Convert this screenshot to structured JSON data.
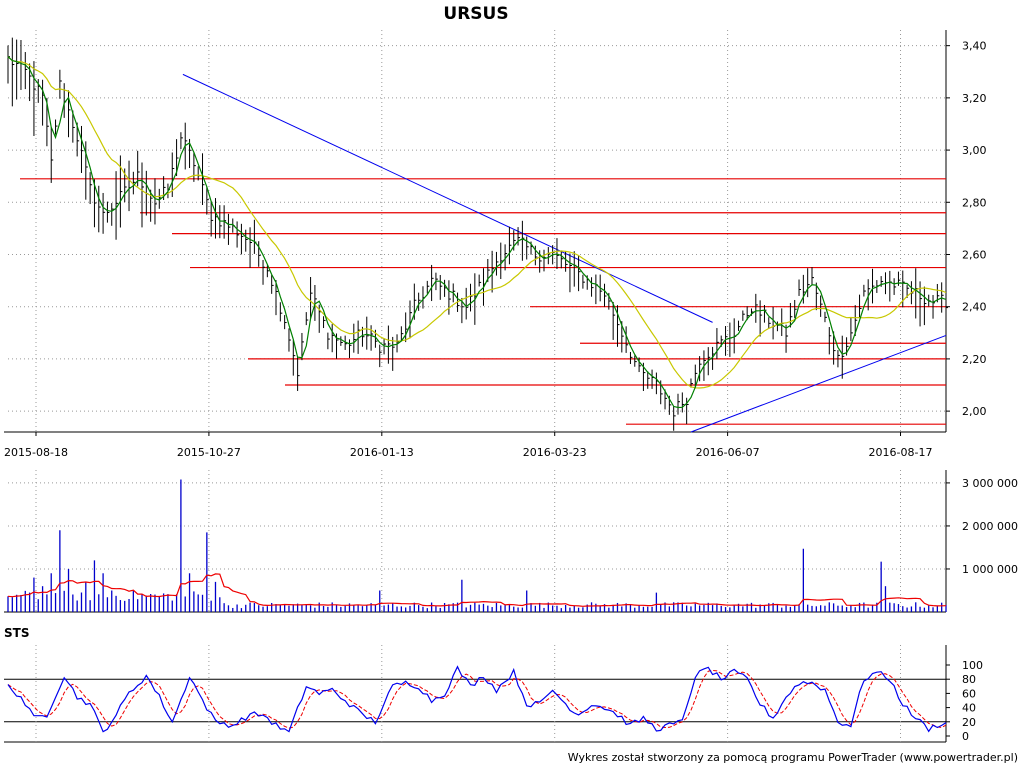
{
  "title": "URSUS",
  "credit": "Wykres został stworzony za pomocą programu PowerTrader (www.powertrader.pl)",
  "indicator_label": "STS",
  "colors": {
    "candle": "#000000",
    "ma_short": "#008000",
    "ma_long": "#c8c800",
    "support": "#e60000",
    "trend": "#0000ee",
    "volume": "#0000cc",
    "volume_ma": "#ee0000",
    "sts_k": "#0000ee",
    "sts_d": "#ee0000"
  },
  "chart_data": [
    {
      "type": "line",
      "name": "price",
      "x_tick_labels": [
        "2015-08-18",
        "2015-10-27",
        "2016-01-13",
        "2016-03-23",
        "2016-06-07",
        "2016-08-17"
      ],
      "y_tick_labels": [
        "3,40",
        "3,20",
        "3,00",
        "2,80",
        "2,60",
        "2,40",
        "2,20",
        "2,00"
      ],
      "ylim": [
        1.92,
        3.46
      ],
      "close_key_points": [
        [
          0,
          3.35
        ],
        [
          4,
          3.3
        ],
        [
          8,
          3.2
        ],
        [
          10,
          2.95
        ],
        [
          12,
          3.25
        ],
        [
          16,
          3.05
        ],
        [
          19,
          2.85
        ],
        [
          22,
          2.75
        ],
        [
          26,
          2.82
        ],
        [
          30,
          2.9
        ],
        [
          34,
          2.8
        ],
        [
          37,
          2.85
        ],
        [
          40,
          3.05
        ],
        [
          43,
          2.95
        ],
        [
          47,
          2.75
        ],
        [
          52,
          2.7
        ],
        [
          56,
          2.65
        ],
        [
          60,
          2.55
        ],
        [
          64,
          2.35
        ],
        [
          67,
          2.15
        ],
        [
          70,
          2.45
        ],
        [
          74,
          2.3
        ],
        [
          78,
          2.25
        ],
        [
          82,
          2.3
        ],
        [
          86,
          2.25
        ],
        [
          90,
          2.25
        ],
        [
          94,
          2.4
        ],
        [
          98,
          2.5
        ],
        [
          102,
          2.45
        ],
        [
          106,
          2.4
        ],
        [
          110,
          2.5
        ],
        [
          114,
          2.6
        ],
        [
          118,
          2.65
        ],
        [
          122,
          2.6
        ],
        [
          126,
          2.6
        ],
        [
          130,
          2.55
        ],
        [
          134,
          2.5
        ],
        [
          138,
          2.45
        ],
        [
          142,
          2.3
        ],
        [
          146,
          2.15
        ],
        [
          150,
          2.1
        ],
        [
          154,
          2.0
        ],
        [
          157,
          2.05
        ],
        [
          160,
          2.2
        ],
        [
          164,
          2.25
        ],
        [
          168,
          2.3
        ],
        [
          172,
          2.4
        ],
        [
          176,
          2.35
        ],
        [
          180,
          2.3
        ],
        [
          183,
          2.45
        ],
        [
          186,
          2.5
        ],
        [
          189,
          2.35
        ],
        [
          192,
          2.2
        ],
        [
          195,
          2.3
        ],
        [
          198,
          2.45
        ],
        [
          202,
          2.5
        ],
        [
          206,
          2.48
        ],
        [
          210,
          2.45
        ],
        [
          214,
          2.42
        ]
      ],
      "support_levels": [
        2.89,
        2.76,
        2.68,
        2.55,
        2.4,
        2.26,
        2.2,
        2.1,
        1.95
      ],
      "trend_lines": [
        {
          "from": [
            "2015-10-27",
            3.29
          ],
          "to": [
            163,
            2.34
          ]
        },
        {
          "from": [
            158,
            1.92
          ],
          "to": [
            217,
            2.29
          ]
        }
      ]
    },
    {
      "type": "bar",
      "name": "volume",
      "y_tick_labels": [
        "3 000 000",
        "2 000 000",
        "1 000 000"
      ],
      "ylim": [
        0,
        3300000
      ],
      "spikes": [
        [
          2,
          400000
        ],
        [
          6,
          800000
        ],
        [
          8,
          600000
        ],
        [
          10,
          900000
        ],
        [
          12,
          1900000
        ],
        [
          14,
          1000000
        ],
        [
          18,
          700000
        ],
        [
          20,
          1200000
        ],
        [
          22,
          900000
        ],
        [
          24,
          500000
        ],
        [
          40,
          3080000
        ],
        [
          42,
          900000
        ],
        [
          45,
          400000
        ],
        [
          46,
          1850000
        ],
        [
          48,
          700000
        ],
        [
          86,
          500000
        ],
        [
          105,
          750000
        ],
        [
          120,
          500000
        ],
        [
          150,
          450000
        ],
        [
          184,
          1470000
        ],
        [
          202,
          1170000
        ],
        [
          203,
          600000
        ]
      ]
    },
    {
      "type": "line",
      "name": "STS",
      "y_tick_labels": [
        "100",
        "80",
        "60",
        "40",
        "20",
        "0"
      ],
      "ylim": [
        0,
        100
      ],
      "reference_lines": [
        20,
        80
      ],
      "k_key_points": [
        [
          0,
          70
        ],
        [
          3,
          55
        ],
        [
          6,
          25
        ],
        [
          9,
          30
        ],
        [
          13,
          85
        ],
        [
          16,
          55
        ],
        [
          19,
          45
        ],
        [
          22,
          5
        ],
        [
          25,
          30
        ],
        [
          28,
          60
        ],
        [
          32,
          85
        ],
        [
          35,
          55
        ],
        [
          38,
          20
        ],
        [
          40,
          50
        ],
        [
          42,
          85
        ],
        [
          45,
          50
        ],
        [
          48,
          20
        ],
        [
          52,
          15
        ],
        [
          56,
          30
        ],
        [
          59,
          30
        ],
        [
          62,
          15
        ],
        [
          65,
          5
        ],
        [
          69,
          70
        ],
        [
          72,
          60
        ],
        [
          75,
          65
        ],
        [
          79,
          45
        ],
        [
          82,
          30
        ],
        [
          85,
          20
        ],
        [
          89,
          70
        ],
        [
          92,
          75
        ],
        [
          95,
          70
        ],
        [
          98,
          50
        ],
        [
          101,
          60
        ],
        [
          104,
          95
        ],
        [
          107,
          70
        ],
        [
          110,
          85
        ],
        [
          113,
          65
        ],
        [
          117,
          90
        ],
        [
          120,
          45
        ],
        [
          123,
          45
        ],
        [
          126,
          65
        ],
        [
          129,
          45
        ],
        [
          132,
          30
        ],
        [
          135,
          45
        ],
        [
          138,
          40
        ],
        [
          141,
          30
        ],
        [
          144,
          15
        ],
        [
          147,
          25
        ],
        [
          150,
          10
        ],
        [
          153,
          15
        ],
        [
          156,
          20
        ],
        [
          159,
          85
        ],
        [
          162,
          95
        ],
        [
          165,
          80
        ],
        [
          168,
          90
        ],
        [
          171,
          80
        ],
        [
          174,
          45
        ],
        [
          177,
          25
        ],
        [
          180,
          55
        ],
        [
          183,
          75
        ],
        [
          186,
          75
        ],
        [
          189,
          65
        ],
        [
          192,
          20
        ],
        [
          195,
          15
        ],
        [
          198,
          80
        ],
        [
          201,
          90
        ],
        [
          204,
          80
        ],
        [
          207,
          45
        ],
        [
          210,
          25
        ],
        [
          213,
          10
        ],
        [
          216,
          18
        ]
      ]
    }
  ]
}
